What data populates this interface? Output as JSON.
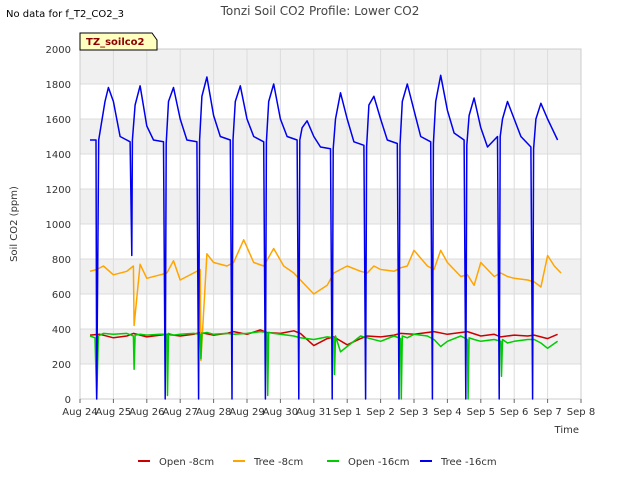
{
  "header": {
    "no_data_note": "No data for f_T2_CO2_3",
    "badge": "TZ_soilco2"
  },
  "colors": {
    "band": "#f0f0f0",
    "grid": "#dcdcdc",
    "badge_fill": "#ffffc0",
    "badge_stroke": "#000000"
  },
  "chart_data": {
    "type": "line",
    "title": "Tonzi Soil CO2 Profile: Lower CO2",
    "xlabel": "Time",
    "ylabel": "Soil CO2 (ppm)",
    "xlim": [
      "2023-08-24",
      "2023-09-08"
    ],
    "ylim": [
      0,
      2000
    ],
    "y_ticks": [
      0,
      200,
      400,
      600,
      800,
      1000,
      1200,
      1400,
      1600,
      1800,
      2000
    ],
    "x_tick_labels": [
      "Aug 24",
      "Aug 25",
      "Aug 26",
      "Aug 27",
      "Aug 28",
      "Aug 29",
      "Aug 30",
      "Aug 31",
      "Sep 1",
      "Sep 2",
      "Sep 3",
      "Sep 4",
      "Sep 5",
      "Sep 6",
      "Sep 7",
      "Sep 8"
    ],
    "x_days": [
      0,
      1,
      2,
      3,
      4,
      5,
      6,
      7,
      8,
      9,
      10,
      11,
      12,
      13,
      14,
      15
    ],
    "grid": true,
    "legend_position": "bottom",
    "series": [
      {
        "name": "Open -8cm",
        "color": "#cc0000",
        "x": [
          0.3,
          0.6,
          1.0,
          1.4,
          1.6,
          2.0,
          2.4,
          2.6,
          3.0,
          3.4,
          3.6,
          4.0,
          4.4,
          4.6,
          5.0,
          5.4,
          5.6,
          6.0,
          6.4,
          6.6,
          7.0,
          7.4,
          7.6,
          8.0,
          8.4,
          8.6,
          9.0,
          9.4,
          9.6,
          10.0,
          10.4,
          10.6,
          11.0,
          11.4,
          11.6,
          12.0,
          12.4,
          12.6,
          13.0,
          13.4,
          13.6,
          14.0,
          14.3
        ],
        "y": [
          365,
          370,
          350,
          360,
          375,
          355,
          365,
          370,
          360,
          370,
          380,
          365,
          375,
          385,
          370,
          395,
          380,
          375,
          390,
          375,
          305,
          345,
          355,
          310,
          345,
          360,
          355,
          365,
          375,
          370,
          380,
          385,
          370,
          380,
          385,
          360,
          370,
          355,
          365,
          360,
          365,
          345,
          370
        ]
      },
      {
        "name": "Tree -8cm",
        "color": "#ffa500",
        "x": [
          0.3,
          0.5,
          0.7,
          1.0,
          1.4,
          1.6,
          1.62,
          1.8,
          2.0,
          2.4,
          2.6,
          2.8,
          3.0,
          3.4,
          3.6,
          3.62,
          3.8,
          4.0,
          4.4,
          4.6,
          4.9,
          5.2,
          5.5,
          5.8,
          6.1,
          6.4,
          6.6,
          6.8,
          7.0,
          7.4,
          7.6,
          7.8,
          8.0,
          8.4,
          8.6,
          8.8,
          9.0,
          9.4,
          9.6,
          9.8,
          10.0,
          10.4,
          10.6,
          10.8,
          11.0,
          11.4,
          11.6,
          11.8,
          12.0,
          12.4,
          12.6,
          12.8,
          13.0,
          13.4,
          13.6,
          13.8,
          14.0,
          14.2,
          14.4
        ],
        "y": [
          730,
          740,
          760,
          710,
          730,
          760,
          420,
          770,
          690,
          710,
          720,
          790,
          680,
          720,
          740,
          220,
          830,
          780,
          760,
          780,
          910,
          780,
          760,
          860,
          760,
          720,
          680,
          640,
          600,
          650,
          720,
          740,
          760,
          730,
          720,
          760,
          740,
          730,
          750,
          760,
          850,
          760,
          740,
          850,
          780,
          700,
          710,
          650,
          780,
          700,
          720,
          700,
          690,
          680,
          670,
          640,
          820,
          760,
          720
        ]
      },
      {
        "name": "Open -16cm",
        "color": "#00cc00",
        "x": [
          0.3,
          0.45,
          0.5,
          0.55,
          0.7,
          1.0,
          1.4,
          1.6,
          1.62,
          1.65,
          1.8,
          2.0,
          2.4,
          2.6,
          2.62,
          2.65,
          2.8,
          3.0,
          3.4,
          3.6,
          3.62,
          3.65,
          3.8,
          4.0,
          4.4,
          4.6,
          5.0,
          5.4,
          5.6,
          5.62,
          5.65,
          5.8,
          6.0,
          6.4,
          6.6,
          6.8,
          7.0,
          7.4,
          7.6,
          7.62,
          7.65,
          7.8,
          8.0,
          8.4,
          8.6,
          9.0,
          9.4,
          9.6,
          9.62,
          9.65,
          9.8,
          10.0,
          10.4,
          10.6,
          10.8,
          11.0,
          11.4,
          11.6,
          11.62,
          11.65,
          11.8,
          12.0,
          12.4,
          12.6,
          12.62,
          12.65,
          12.8,
          13.0,
          13.4,
          13.6,
          13.8,
          14.0,
          14.3
        ],
        "y": [
          360,
          350,
          0,
          360,
          375,
          370,
          375,
          360,
          170,
          365,
          370,
          365,
          370,
          370,
          20,
          375,
          365,
          370,
          375,
          370,
          230,
          375,
          380,
          370,
          375,
          370,
          375,
          385,
          380,
          20,
          380,
          375,
          370,
          360,
          350,
          345,
          340,
          355,
          350,
          140,
          360,
          270,
          300,
          360,
          350,
          330,
          360,
          345,
          0,
          360,
          350,
          370,
          360,
          340,
          300,
          330,
          360,
          340,
          0,
          350,
          340,
          330,
          340,
          330,
          130,
          340,
          320,
          330,
          340,
          340,
          320,
          290,
          330
        ]
      },
      {
        "name": "Tree -16cm",
        "color": "#0000ee",
        "x": [
          0.3,
          0.48,
          0.5,
          0.56,
          0.75,
          0.85,
          1.0,
          1.2,
          1.5,
          1.55,
          1.57,
          1.65,
          1.8,
          2.0,
          2.2,
          2.5,
          2.55,
          2.58,
          2.65,
          2.8,
          3.0,
          3.2,
          3.5,
          3.55,
          3.58,
          3.65,
          3.8,
          4.0,
          4.2,
          4.5,
          4.55,
          4.58,
          4.65,
          4.8,
          5.0,
          5.2,
          5.5,
          5.55,
          5.58,
          5.65,
          5.8,
          6.0,
          6.2,
          6.5,
          6.55,
          6.58,
          6.65,
          6.8,
          7.0,
          7.2,
          7.5,
          7.55,
          7.58,
          7.65,
          7.8,
          8.0,
          8.2,
          8.5,
          8.55,
          8.58,
          8.65,
          8.8,
          9.0,
          9.2,
          9.5,
          9.55,
          9.58,
          9.65,
          9.8,
          10.0,
          10.2,
          10.5,
          10.55,
          10.58,
          10.65,
          10.8,
          11.0,
          11.2,
          11.5,
          11.55,
          11.58,
          11.65,
          11.8,
          12.0,
          12.2,
          12.5,
          12.55,
          12.58,
          12.65,
          12.8,
          13.0,
          13.2,
          13.5,
          13.55,
          13.58,
          13.65,
          13.8,
          14.0,
          14.3
        ],
        "y": [
          1480,
          1480,
          0,
          1480,
          1700,
          1780,
          1700,
          1500,
          1470,
          820,
          1480,
          1680,
          1790,
          1560,
          1480,
          1470,
          0,
          1460,
          1700,
          1780,
          1600,
          1480,
          1470,
          0,
          1480,
          1730,
          1840,
          1620,
          1500,
          1480,
          0,
          1480,
          1700,
          1790,
          1600,
          1500,
          1470,
          0,
          1470,
          1700,
          1800,
          1600,
          1500,
          1480,
          0,
          1480,
          1550,
          1590,
          1500,
          1440,
          1430,
          0,
          1430,
          1600,
          1750,
          1600,
          1470,
          1450,
          0,
          1440,
          1680,
          1730,
          1600,
          1480,
          1460,
          0,
          1450,
          1700,
          1800,
          1650,
          1500,
          1470,
          0,
          1460,
          1700,
          1850,
          1650,
          1520,
          1480,
          0,
          1450,
          1620,
          1720,
          1550,
          1440,
          1500,
          0,
          1500,
          1600,
          1700,
          1600,
          1500,
          1440,
          0,
          1430,
          1600,
          1690,
          1600,
          1480
        ]
      }
    ]
  }
}
